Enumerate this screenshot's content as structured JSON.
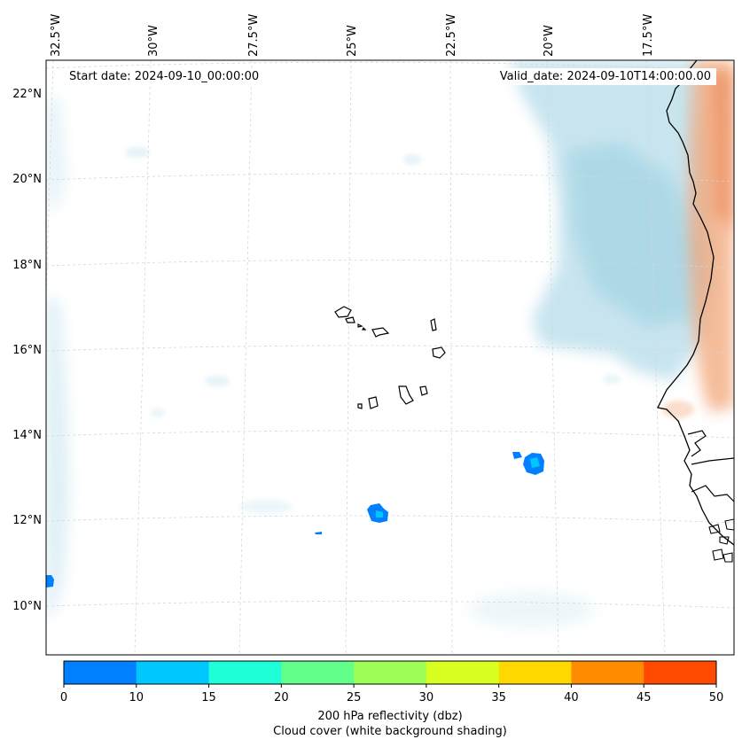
{
  "header": {
    "start_date": "Start date: 2024-09-10_00:00:00",
    "valid_date": "Valid_date: 2024-09-10T14:00:00.00"
  },
  "map": {
    "lon_labels": [
      "32.5°W",
      "30°W",
      "27.5°W",
      "25°W",
      "22.5°W",
      "20°W",
      "17.5°W"
    ],
    "lat_labels": [
      "22°N",
      "20°N",
      "18°N",
      "16°N",
      "14°N",
      "12°N",
      "10°N"
    ],
    "features": [
      "Cape Verde islands",
      "West African coastline",
      "cloud cover shading",
      "dust/warm shading",
      "reflectivity cells"
    ]
  },
  "colorbar": {
    "ticks": [
      "0",
      "10",
      "15",
      "20",
      "25",
      "30",
      "35",
      "40",
      "45",
      "50"
    ],
    "colors": [
      "#0080ff",
      "#00c8ff",
      "#1effd8",
      "#62ff8a",
      "#9dff55",
      "#d8ff1f",
      "#ffd800",
      "#ff8c00",
      "#ff4a00"
    ],
    "label_line1": "200 hPa reflectivity (dbz)",
    "label_line2": "Cloud cover (white background shading)"
  },
  "colors": {
    "cloud": "#a9d6e6",
    "warm": "#f2a070",
    "echo_dark": "#0080ff",
    "echo_light": "#00c8ff"
  }
}
